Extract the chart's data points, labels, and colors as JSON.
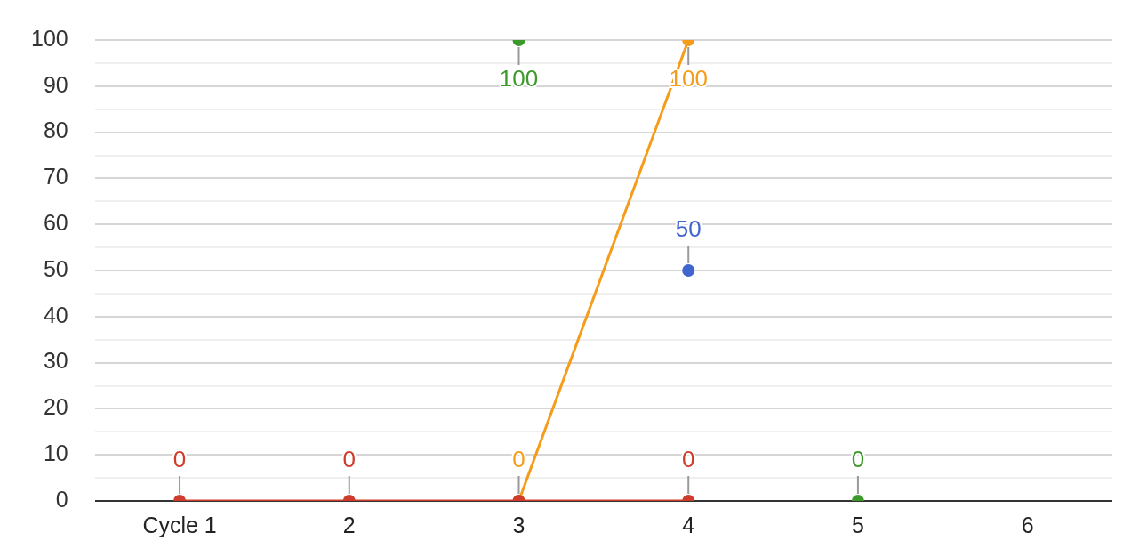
{
  "chart_data": {
    "type": "line",
    "categories": [
      "Cycle 1",
      "2",
      "3",
      "4",
      "5",
      "6"
    ],
    "series": [
      {
        "color": "#cf3c2b",
        "values": [
          0,
          0,
          0,
          0,
          null,
          null
        ],
        "value_labels": [
          "0",
          "0",
          null,
          "0",
          null,
          null
        ]
      },
      {
        "color": "#f59c1a",
        "values": [
          null,
          null,
          0,
          100,
          null,
          null
        ],
        "value_labels": [
          null,
          null,
          "0",
          "100",
          null,
          null
        ]
      },
      {
        "type": "scatter",
        "color": "#3c9a2a",
        "values": [
          null,
          null,
          100,
          null,
          0,
          null
        ],
        "value_labels": [
          null,
          null,
          "100",
          null,
          "0",
          null
        ]
      },
      {
        "type": "scatter",
        "color": "#4065cf",
        "values": [
          null,
          null,
          null,
          50,
          null,
          null
        ],
        "value_labels": [
          null,
          null,
          null,
          "50",
          null,
          null
        ]
      }
    ],
    "ylim": [
      0,
      100
    ],
    "yticks": [
      0,
      {
        "value": 5,
        "label": null
      },
      10,
      {
        "value": 15,
        "label": null
      },
      20,
      {
        "value": 25,
        "label": null
      },
      30,
      {
        "value": 35,
        "label": null
      },
      40,
      {
        "value": 45,
        "label": null
      },
      50,
      {
        "value": 55,
        "label": null
      },
      60,
      {
        "value": 65,
        "label": null
      },
      70,
      {
        "value": 75,
        "label": null
      },
      80,
      {
        "value": 85,
        "label": null
      },
      90,
      {
        "value": 95,
        "label": null
      },
      100
    ],
    "grid": "y",
    "legend": false,
    "marker": "circle",
    "line_style": "solid"
  }
}
